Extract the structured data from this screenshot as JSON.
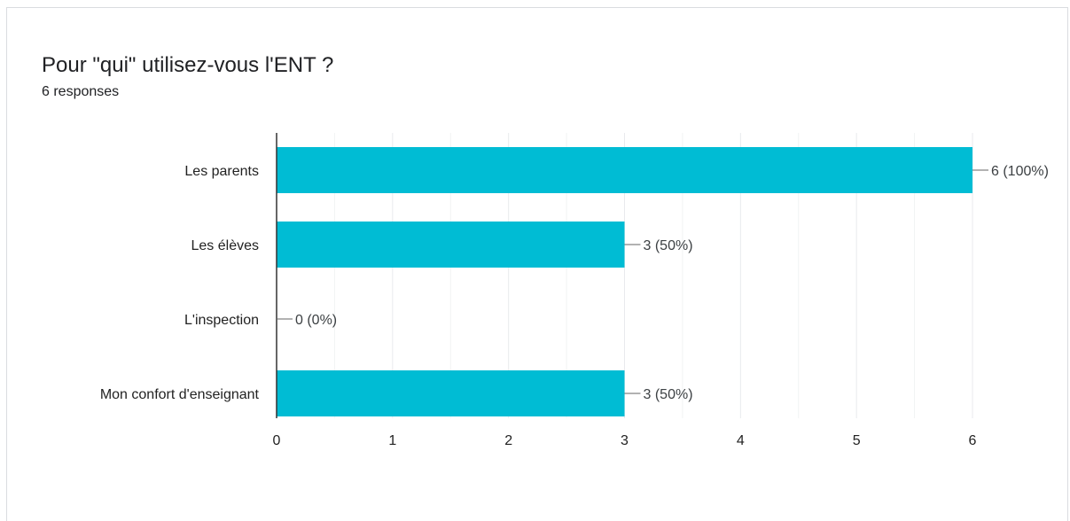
{
  "question": {
    "title": "Pour \"qui\" utilisez-vous l'ENT ?",
    "responses_label": "6 responses"
  },
  "colors": {
    "bar": "#00bcd4",
    "gridline": "#e8eaed",
    "axis": "#333333",
    "text": "#222222",
    "border": "#dadce0"
  },
  "chart_data": {
    "type": "bar",
    "orientation": "horizontal",
    "categories": [
      "Les parents",
      "Les élèves",
      "L'inspection",
      "Mon confort d'enseignant"
    ],
    "values": [
      6,
      3,
      0,
      3
    ],
    "value_labels": [
      "6 (100%)",
      "3 (50%)",
      "0 (0%)",
      "3 (50%)"
    ],
    "xlim": [
      0,
      6
    ],
    "xticks": [
      0,
      1,
      2,
      3,
      4,
      5,
      6
    ],
    "grid": true,
    "legend": "none"
  }
}
